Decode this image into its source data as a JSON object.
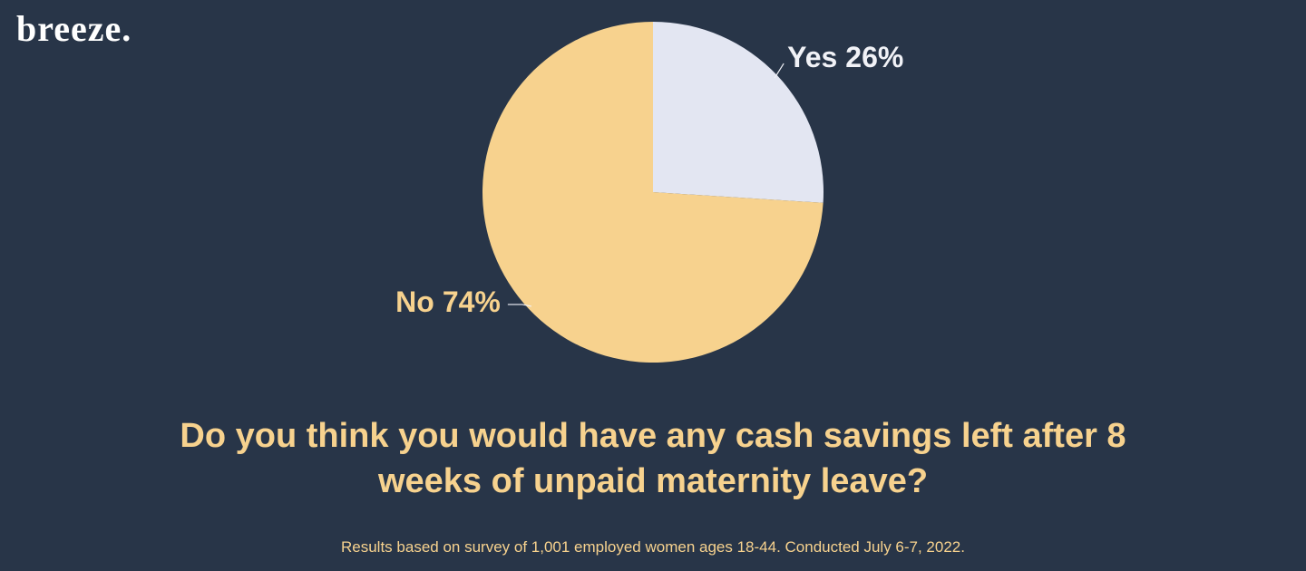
{
  "brand": "breeze.",
  "chart_data": {
    "type": "pie",
    "title": "Do you think you would have any cash savings left after 8 weeks of unpaid maternity leave?",
    "footnote": "Results based on survey of 1,001 employed women ages 18-44. Conducted July 6-7, 2022.",
    "categories": [
      "Yes",
      "No"
    ],
    "values": [
      26,
      74
    ],
    "value_labels": [
      "26%",
      "74%"
    ],
    "colors": [
      "#e3e6f2",
      "#f7d28e"
    ]
  }
}
